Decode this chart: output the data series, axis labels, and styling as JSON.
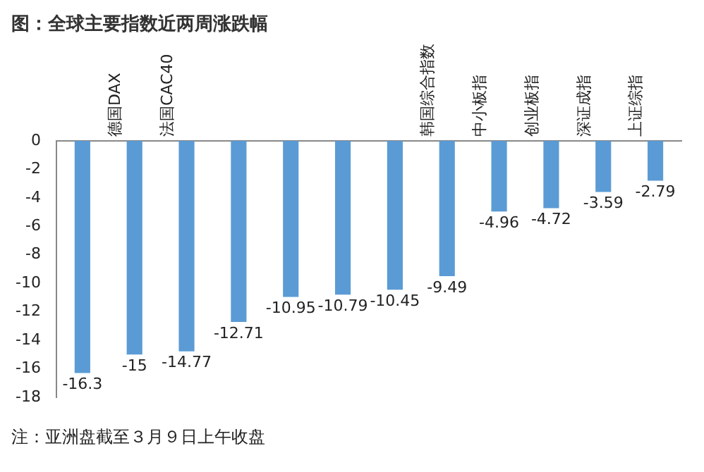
{
  "chart_data": {
    "type": "bar",
    "title": "图：全球主要指数近两周涨跌幅",
    "categories": [
      null,
      "德国DAX",
      "法国CAC40",
      null,
      null,
      null,
      null,
      "韩国综合指数",
      "中小板指",
      "创业板指",
      "深证成指",
      "上证综指"
    ],
    "values": [
      -16.3,
      -15,
      -14.77,
      -12.71,
      -10.95,
      -10.79,
      -10.45,
      -9.49,
      -4.96,
      -4.72,
      -3.59,
      -2.79
    ],
    "color": "#5b9bd5",
    "ylim": [
      -18,
      0
    ],
    "yticks": [
      0,
      -2,
      -4,
      -6,
      -8,
      -10,
      -12,
      -14,
      -16,
      -18
    ],
    "grid": false,
    "data_labels": true,
    "annotations": [
      "注：亚洲盘截至３月９日上午收盘"
    ]
  }
}
